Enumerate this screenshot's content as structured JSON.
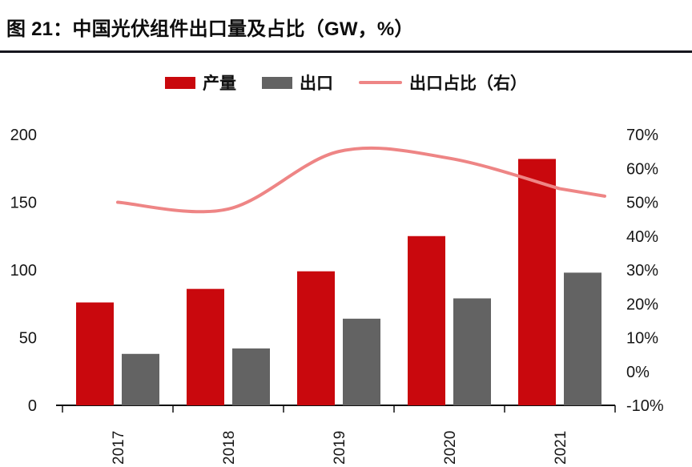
{
  "header": {
    "title": "图 21：中国光伏组件出口量及占比（GW，%）"
  },
  "chart_data": {
    "type": "bar+line",
    "title": "中国光伏组件出口量及占比（GW，%）",
    "categories": [
      "2017",
      "2018",
      "2019",
      "2020",
      "2021"
    ],
    "series": [
      {
        "name": "产量",
        "type": "bar",
        "axis": "left",
        "color": "#c9080d",
        "values": [
          76,
          86,
          99,
          125,
          182
        ]
      },
      {
        "name": "出口",
        "type": "bar",
        "axis": "left",
        "color": "#636363",
        "values": [
          38,
          42,
          64,
          79,
          98
        ]
      },
      {
        "name": "出口占比（右）",
        "type": "line",
        "axis": "right",
        "color": "#ee8585",
        "unit": "%",
        "values": [
          50,
          48,
          65,
          63,
          54
        ]
      }
    ],
    "left_axis": {
      "min": 0,
      "max": 200,
      "ticks": [
        200,
        150,
        100,
        50,
        0
      ]
    },
    "right_axis": {
      "min": -10,
      "max": 70,
      "tick_labels": [
        "70%",
        "60%",
        "50%",
        "40%",
        "30%",
        "20%",
        "10%",
        "0%",
        "-10%"
      ]
    },
    "grid": "off",
    "legend_position": "top-center",
    "x_label_rotation": -90
  },
  "colors": {
    "title_text": "#0d0d0d",
    "title_rule": "#16161d",
    "axis_text": "#161616",
    "production_bar": "#c9080d",
    "export_bar": "#636363",
    "share_line": "#ee8585"
  }
}
